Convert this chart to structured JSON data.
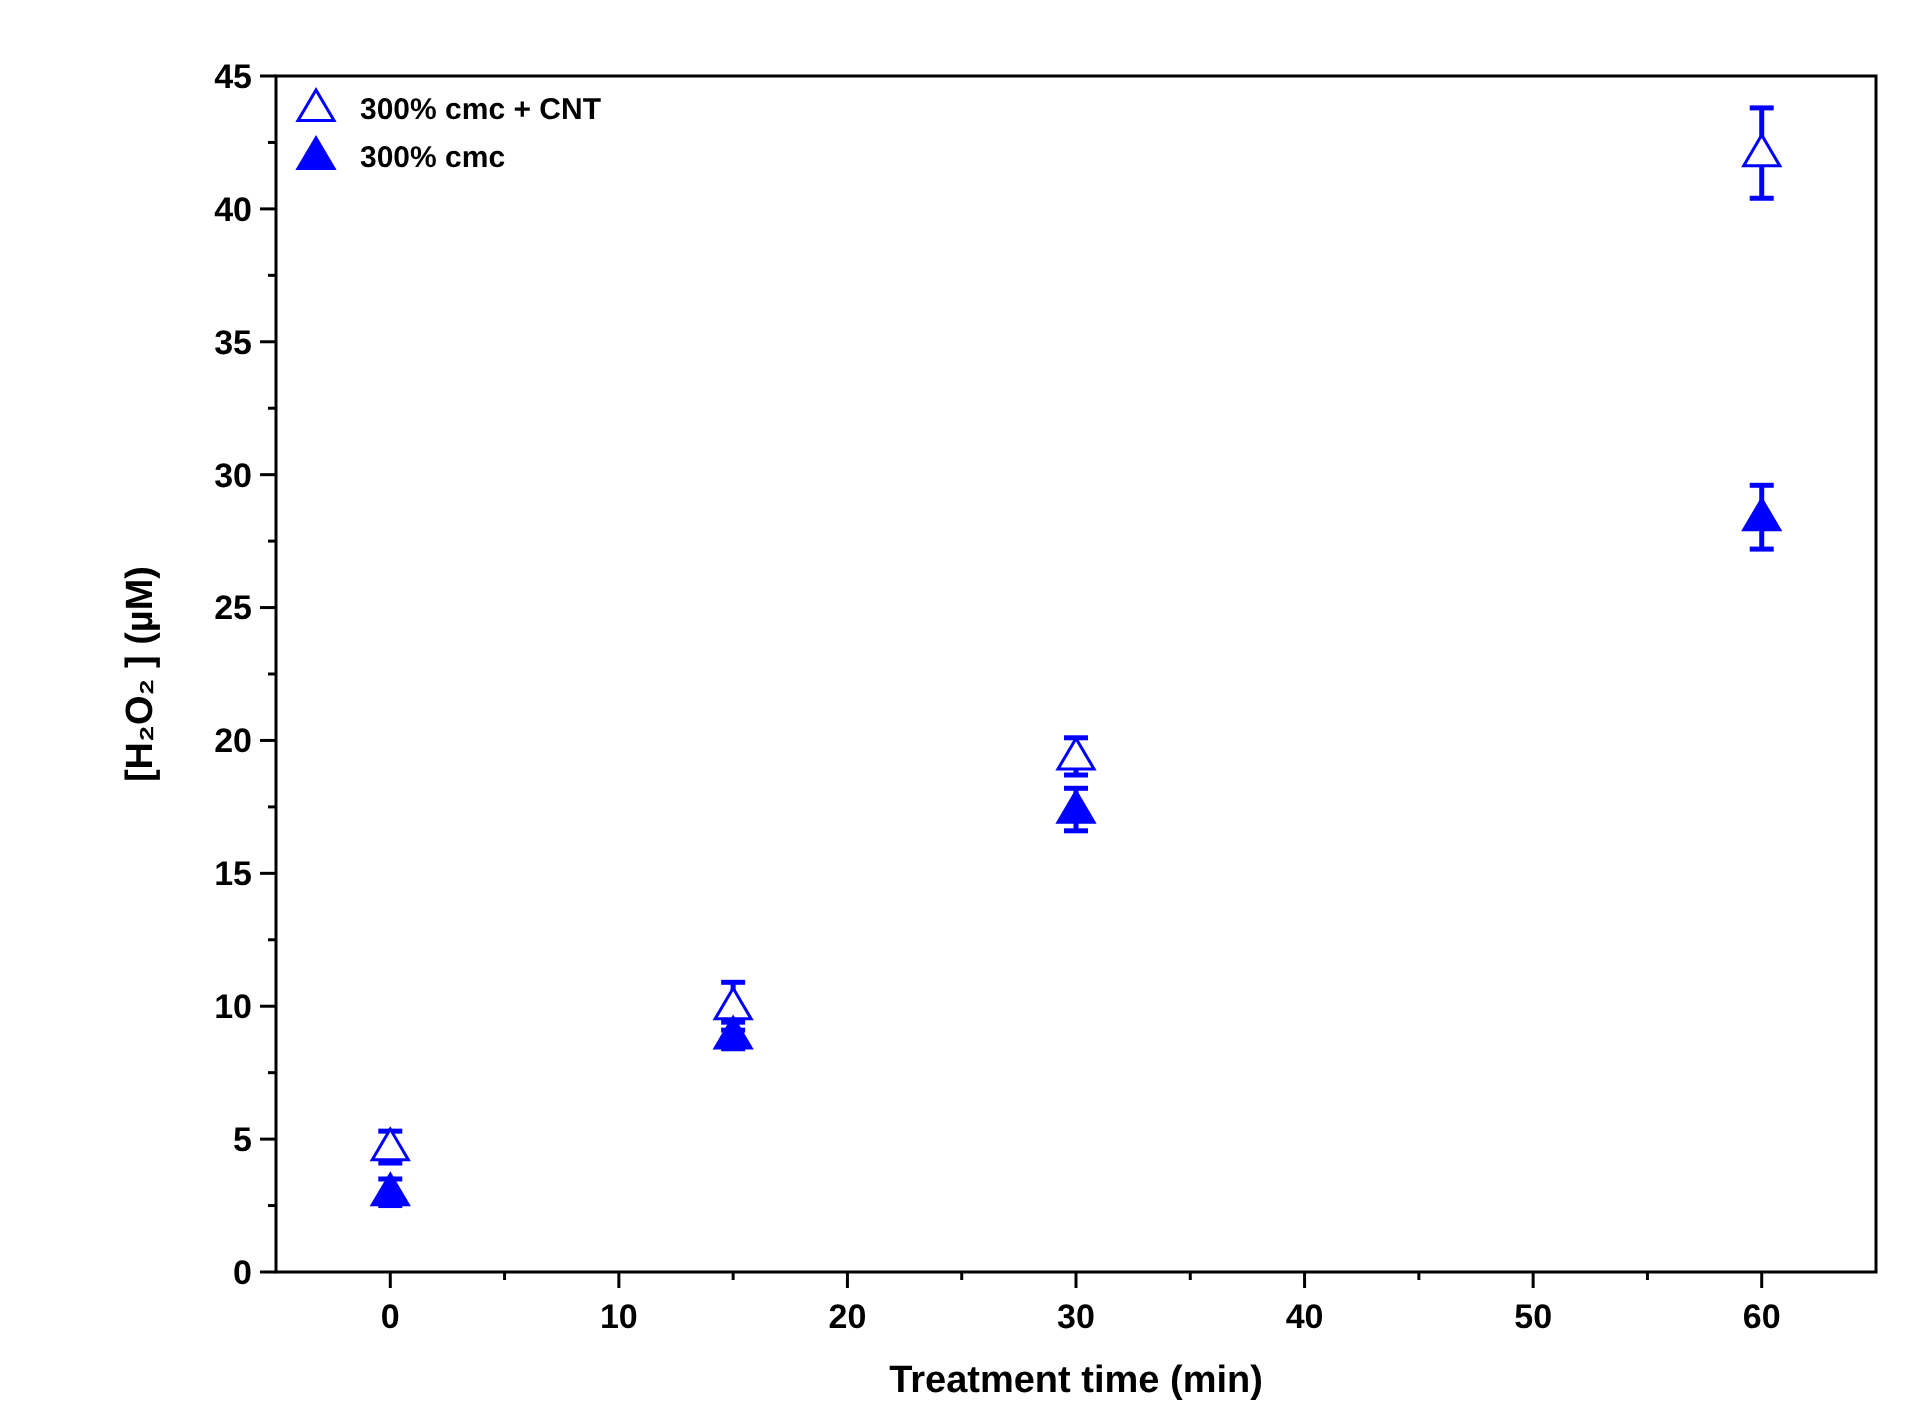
{
  "chart_data": {
    "type": "scatter",
    "xlabel": "Treatment time (min)",
    "ylabel": "[H₂O₂ ] (µM)",
    "x": [
      0,
      15,
      30,
      60
    ],
    "series": [
      {
        "name": "300% cmc + CNT",
        "color": "#0000ff",
        "marker": "triangle-open",
        "values": [
          4.7,
          10.0,
          19.4,
          42.1
        ],
        "errors": [
          0.6,
          0.9,
          0.7,
          1.7
        ]
      },
      {
        "name": "300% cmc",
        "color": "#0000ff",
        "marker": "triangle",
        "values": [
          3.0,
          8.9,
          17.4,
          28.4
        ],
        "errors": [
          0.5,
          0.5,
          0.8,
          1.2
        ]
      }
    ],
    "xlim": [
      -5,
      65
    ],
    "xticks": [
      0,
      10,
      20,
      30,
      40,
      50,
      60
    ],
    "ylim": [
      0,
      45
    ],
    "yticks": [
      0,
      5,
      10,
      15,
      20,
      25,
      30,
      35,
      40,
      45
    ],
    "grid": false,
    "legend": "top left"
  }
}
